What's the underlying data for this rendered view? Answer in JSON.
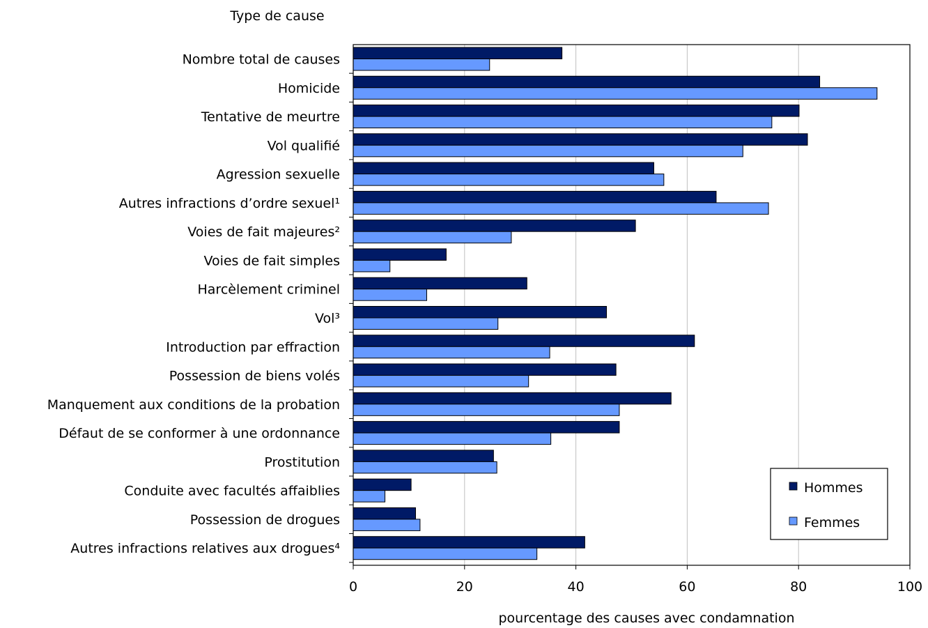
{
  "chart_data": {
    "type": "bar",
    "orientation": "horizontal",
    "title": "",
    "ylabel": "Type de cause",
    "xlabel": "pourcentage des causes avec condamnation",
    "xlim": [
      0,
      100
    ],
    "xticks": [
      0,
      20,
      40,
      60,
      80,
      100
    ],
    "grid": true,
    "legend_position": "bottom-right",
    "categories": [
      "Nombre total de causes",
      "Homicide",
      "Tentative de meurtre",
      "Vol qualifié",
      "Agression sexuelle",
      "Autres infractions d’ordre sexuel¹",
      "Voies de fait majeures²",
      "Voies de fait simples",
      "Harcèlement criminel",
      "Vol³",
      "Introduction par effraction",
      "Possession de biens volés",
      "Manquement aux conditions de la probation",
      "Défaut de se conformer à une ordonnance",
      "Prostitution",
      "Conduite avec facultés affaiblies",
      "Possession de drogues",
      "Autres infractions relatives aux drogues⁴"
    ],
    "series": [
      {
        "name": "Hommes",
        "color": "#001a66",
        "values": [
          37.5,
          83.8,
          80.1,
          81.6,
          54.0,
          65.2,
          50.7,
          16.7,
          31.2,
          45.5,
          61.3,
          47.2,
          57.1,
          47.8,
          25.2,
          10.4,
          11.2,
          41.6
        ]
      },
      {
        "name": "Femmes",
        "color": "#6699ff",
        "values": [
          24.5,
          94.1,
          75.2,
          70.0,
          55.8,
          74.6,
          28.4,
          6.6,
          13.2,
          26.0,
          35.3,
          31.5,
          47.8,
          35.5,
          25.8,
          5.7,
          12.0,
          33.0
        ]
      }
    ]
  }
}
